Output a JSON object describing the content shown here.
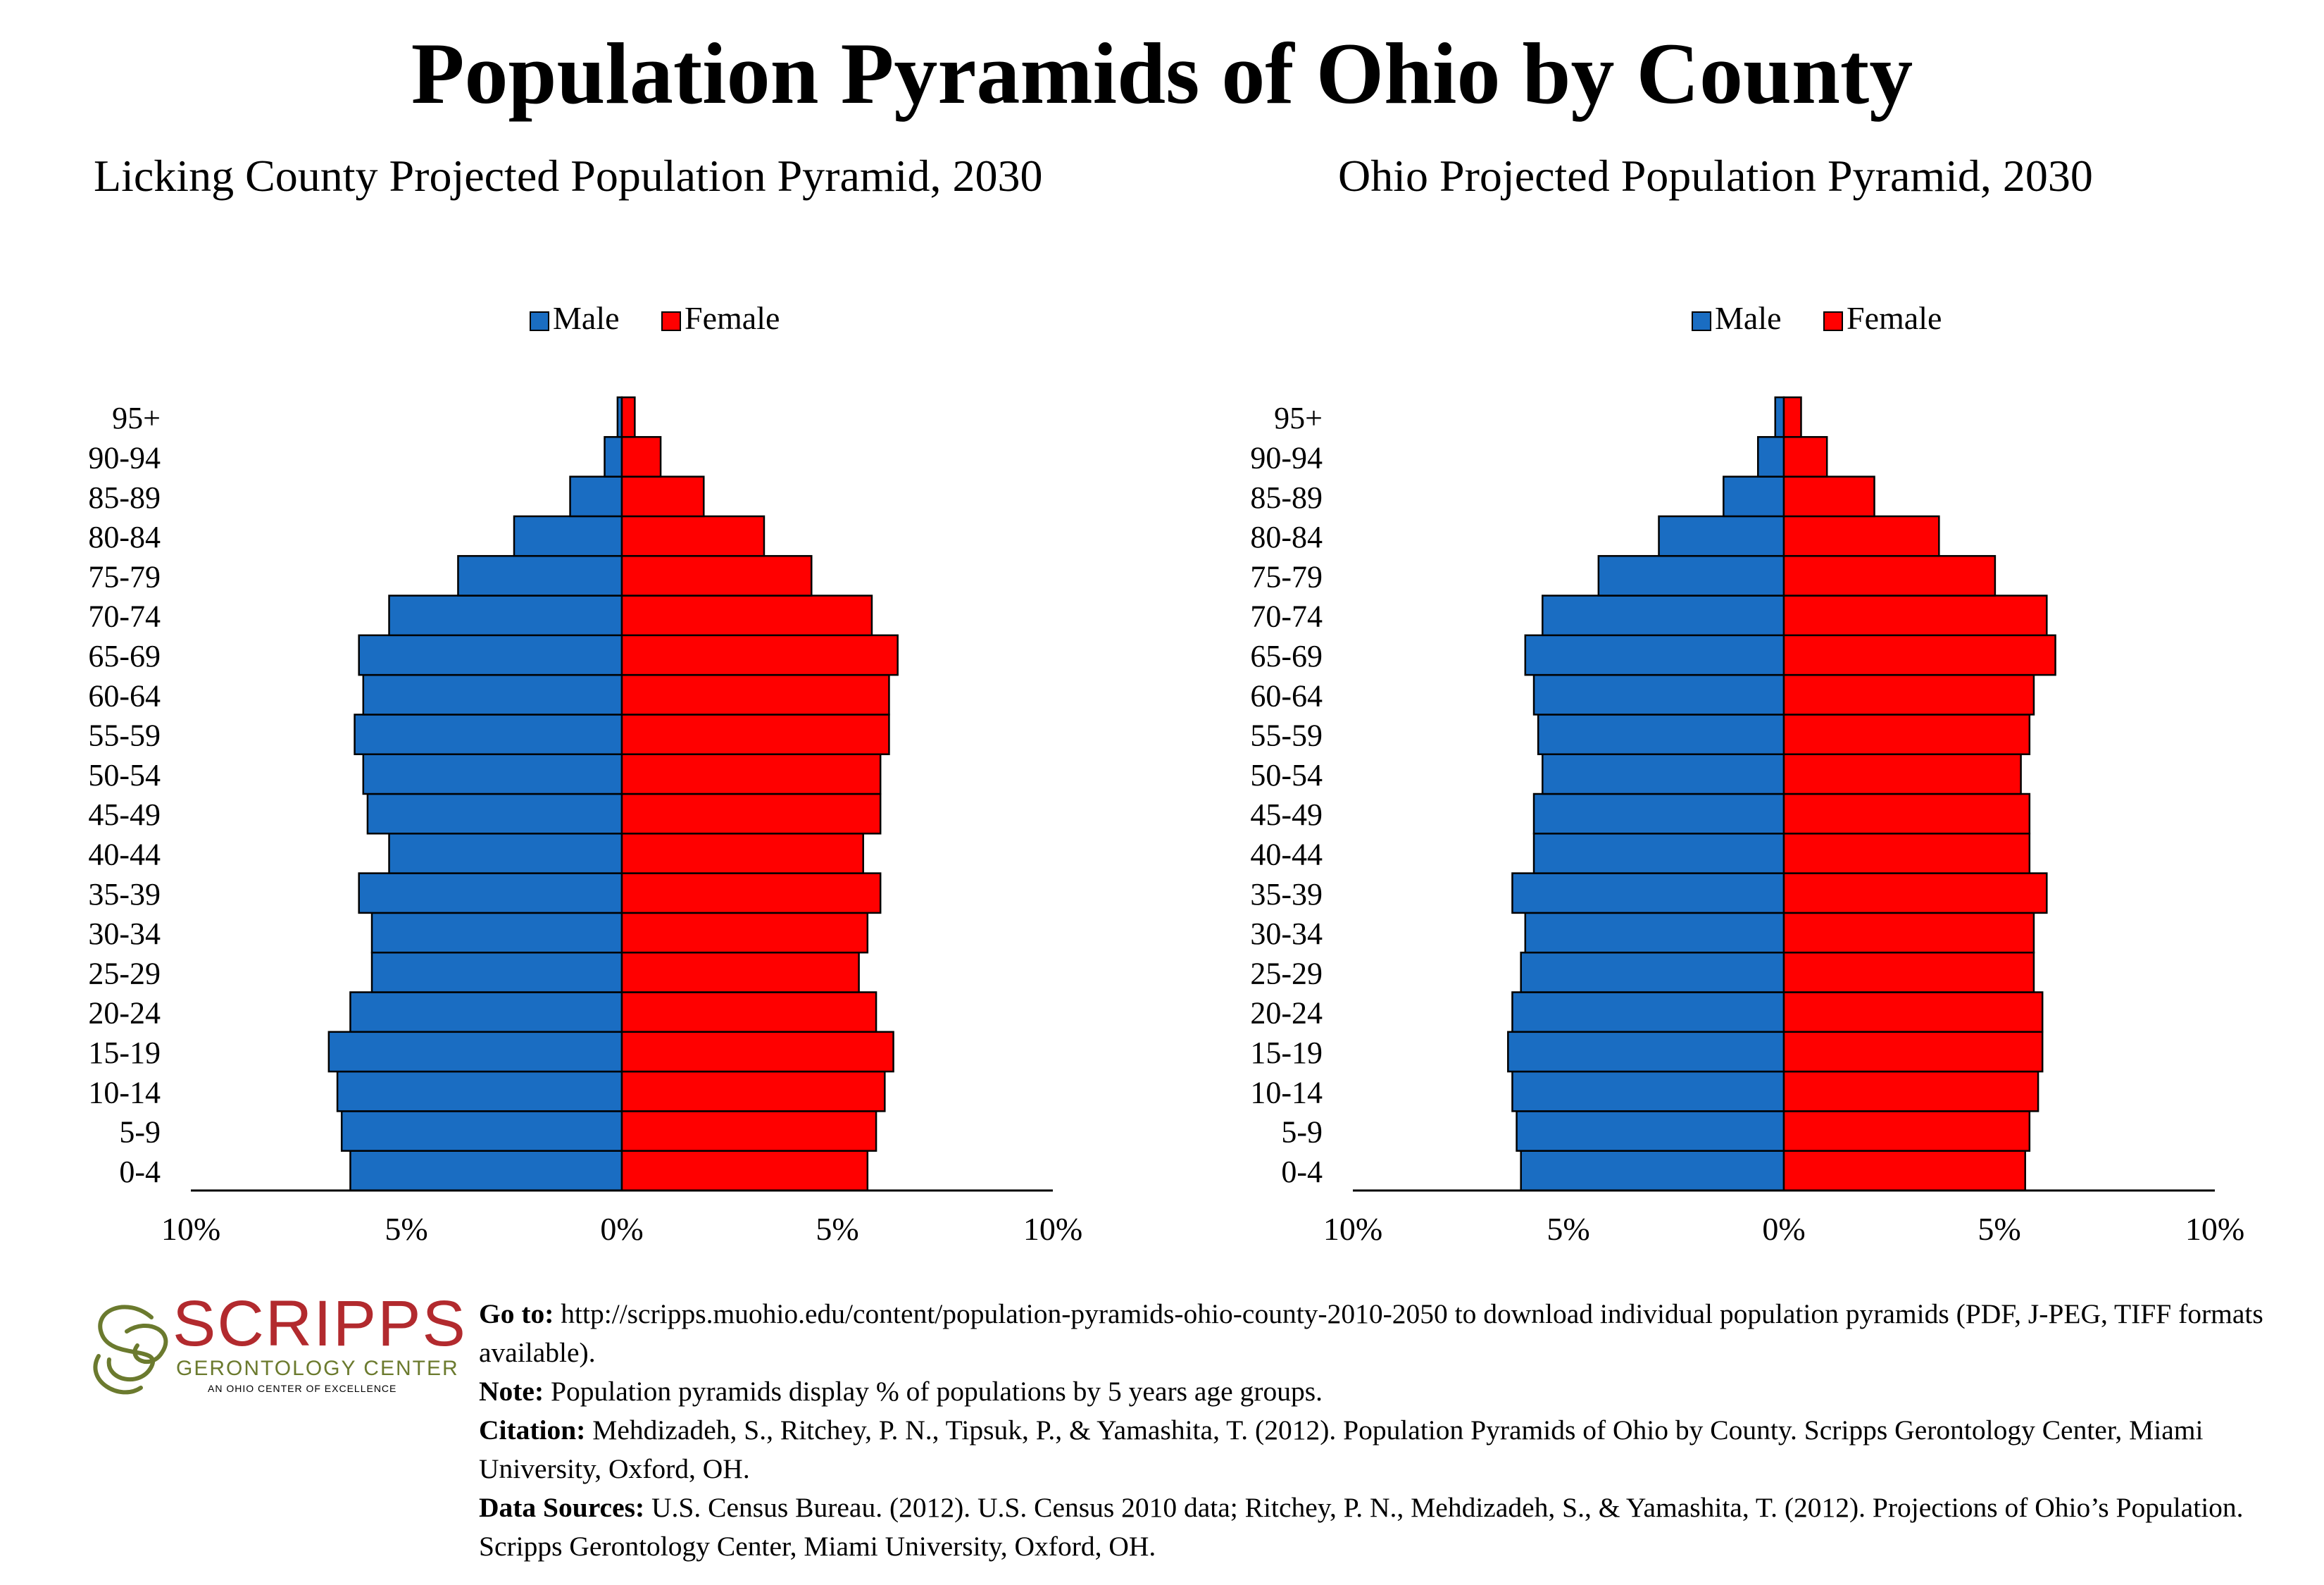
{
  "title": "Population Pyramids of Ohio by County",
  "legend": {
    "male": "Male",
    "female": "Female"
  },
  "colors": {
    "male": "#1a6dc2",
    "female": "#ff0000",
    "outline": "#000000"
  },
  "chart_data": [
    {
      "type": "bar",
      "orientation": "horizontal-pyramid",
      "title": "Licking County Projected Population Pyramid, 2030",
      "categories": [
        "0-4",
        "5-9",
        "10-14",
        "15-19",
        "20-24",
        "25-29",
        "30-34",
        "35-39",
        "40-44",
        "45-49",
        "50-54",
        "55-59",
        "60-64",
        "65-69",
        "70-74",
        "75-79",
        "80-84",
        "85-89",
        "90-94",
        "95+"
      ],
      "series": [
        {
          "name": "Male",
          "values": [
            6.3,
            6.5,
            6.6,
            6.8,
            6.3,
            5.8,
            5.8,
            6.1,
            5.4,
            5.9,
            6.0,
            6.2,
            6.0,
            6.1,
            5.4,
            3.8,
            2.5,
            1.2,
            0.4,
            0.1
          ]
        },
        {
          "name": "Female",
          "values": [
            5.7,
            5.9,
            6.1,
            6.3,
            5.9,
            5.5,
            5.7,
            6.0,
            5.6,
            6.0,
            6.0,
            6.2,
            6.2,
            6.4,
            5.8,
            4.4,
            3.3,
            1.9,
            0.9,
            0.3
          ]
        }
      ],
      "xlim": [
        -10,
        10
      ],
      "tick_labels": [
        "10%",
        "5%",
        "0%",
        "5%",
        "10%"
      ],
      "legend_position": "top-center"
    },
    {
      "type": "bar",
      "orientation": "horizontal-pyramid",
      "title": "Ohio Projected Population Pyramid, 2030",
      "categories": [
        "0-4",
        "5-9",
        "10-14",
        "15-19",
        "20-24",
        "25-29",
        "30-34",
        "35-39",
        "40-44",
        "45-49",
        "50-54",
        "55-59",
        "60-64",
        "65-69",
        "70-74",
        "75-79",
        "80-84",
        "85-89",
        "90-94",
        "95+"
      ],
      "series": [
        {
          "name": "Male",
          "values": [
            6.1,
            6.2,
            6.3,
            6.4,
            6.3,
            6.1,
            6.0,
            6.3,
            5.8,
            5.8,
            5.6,
            5.7,
            5.8,
            6.0,
            5.6,
            4.3,
            2.9,
            1.4,
            0.6,
            0.2
          ]
        },
        {
          "name": "Female",
          "values": [
            5.6,
            5.7,
            5.9,
            6.0,
            6.0,
            5.8,
            5.8,
            6.1,
            5.7,
            5.7,
            5.5,
            5.7,
            5.8,
            6.3,
            6.1,
            4.9,
            3.6,
            2.1,
            1.0,
            0.4
          ]
        }
      ],
      "xlim": [
        -10,
        10
      ],
      "tick_labels": [
        "10%",
        "5%",
        "0%",
        "5%",
        "10%"
      ],
      "legend_position": "top-center"
    }
  ],
  "footer": {
    "logo_name": "SCRIPPS",
    "logo_sub": "GERONTOLOGY CENTER",
    "logo_tag": "AN OHIO CENTER OF EXCELLENCE",
    "goto_label": "Go to:",
    "goto_text": " http://scripps.muohio.edu/content/population-pyramids-ohio-county-2010-2050 to download individual population pyramids (PDF, J-PEG, TIFF formats available).",
    "note_label": "Note:",
    "note_text": " Population pyramids display % of populations by 5 years age groups.",
    "citation_label": "Citation:",
    "citation_text": " Mehdizadeh, S., Ritchey, P. N., Tipsuk, P., & Yamashita, T. (2012). Population Pyramids of Ohio by County. Scripps Gerontology Center, Miami University, Oxford, OH.",
    "sources_label": "Data Sources:",
    "sources_text": " U.S. Census Bureau. (2012). U.S. Census 2010 data; Ritchey, P. N., Mehdizadeh, S., & Yamashita, T. (2012). Projections of Ohio’s Population. Scripps Gerontology Center, Miami University, Oxford, OH."
  }
}
